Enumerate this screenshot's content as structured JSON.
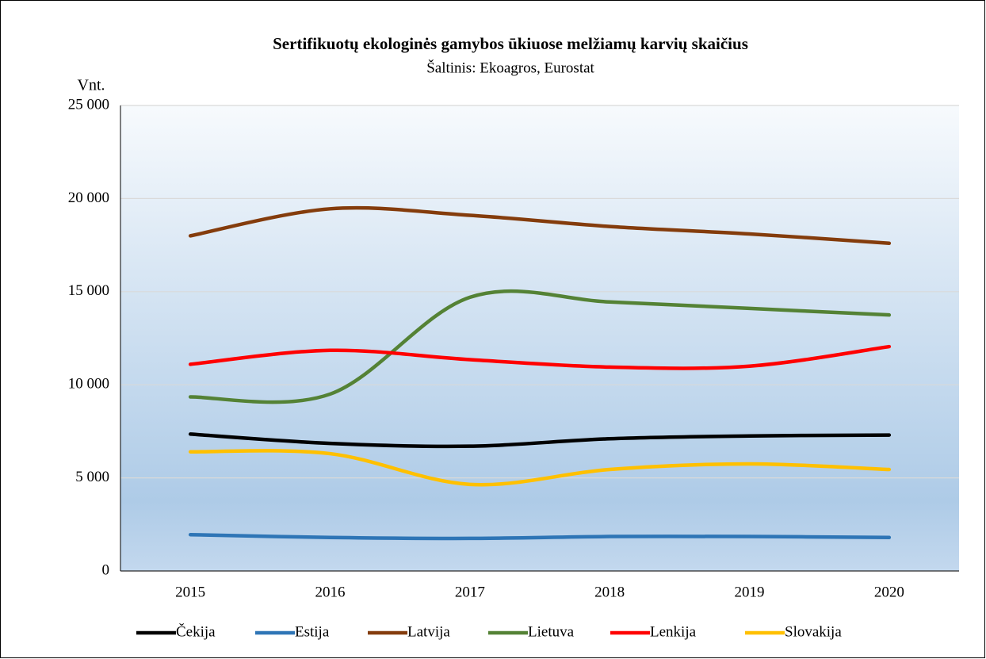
{
  "chart_data": {
    "type": "line",
    "title": "Sertifikuotų ekologinės gamybos ūkiuose melžiamų karvių skaičius",
    "subtitle": "Šaltinis: Ekoagros, Eurostat",
    "y_label": "Vnt.",
    "categories": [
      "2015",
      "2016",
      "2017",
      "2018",
      "2019",
      "2020"
    ],
    "series": [
      {
        "name": "Čekija",
        "color": "#000000",
        "values": [
          7350,
          6850,
          6700,
          7100,
          7250,
          7300
        ]
      },
      {
        "name": "Estija",
        "color": "#2e75b6",
        "values": [
          1950,
          1800,
          1750,
          1850,
          1850,
          1800
        ]
      },
      {
        "name": "Latvija",
        "color": "#843c0c",
        "values": [
          18000,
          19450,
          19100,
          18500,
          18100,
          17600
        ]
      },
      {
        "name": "Lietuva",
        "color": "#548235",
        "values": [
          9350,
          9500,
          14700,
          14450,
          14100,
          13750
        ]
      },
      {
        "name": "Lenkija",
        "color": "#ff0000",
        "values": [
          11100,
          11850,
          11350,
          10950,
          11000,
          12050
        ]
      },
      {
        "name": "Slovakija",
        "color": "#ffc000",
        "values": [
          6400,
          6300,
          4650,
          5450,
          5750,
          5450
        ]
      }
    ],
    "ylim": [
      0,
      25000
    ],
    "yticks": [
      0,
      {
        "value": 5000,
        "label": "5 000"
      },
      {
        "value": 10000,
        "label": "10 000"
      },
      {
        "value": 15000,
        "label": "15 000"
      },
      {
        "value": 20000,
        "label": "20 000"
      },
      {
        "value": 25000,
        "label": "25 000"
      }
    ],
    "grid": true,
    "smooth": true,
    "legend": "bottom"
  }
}
